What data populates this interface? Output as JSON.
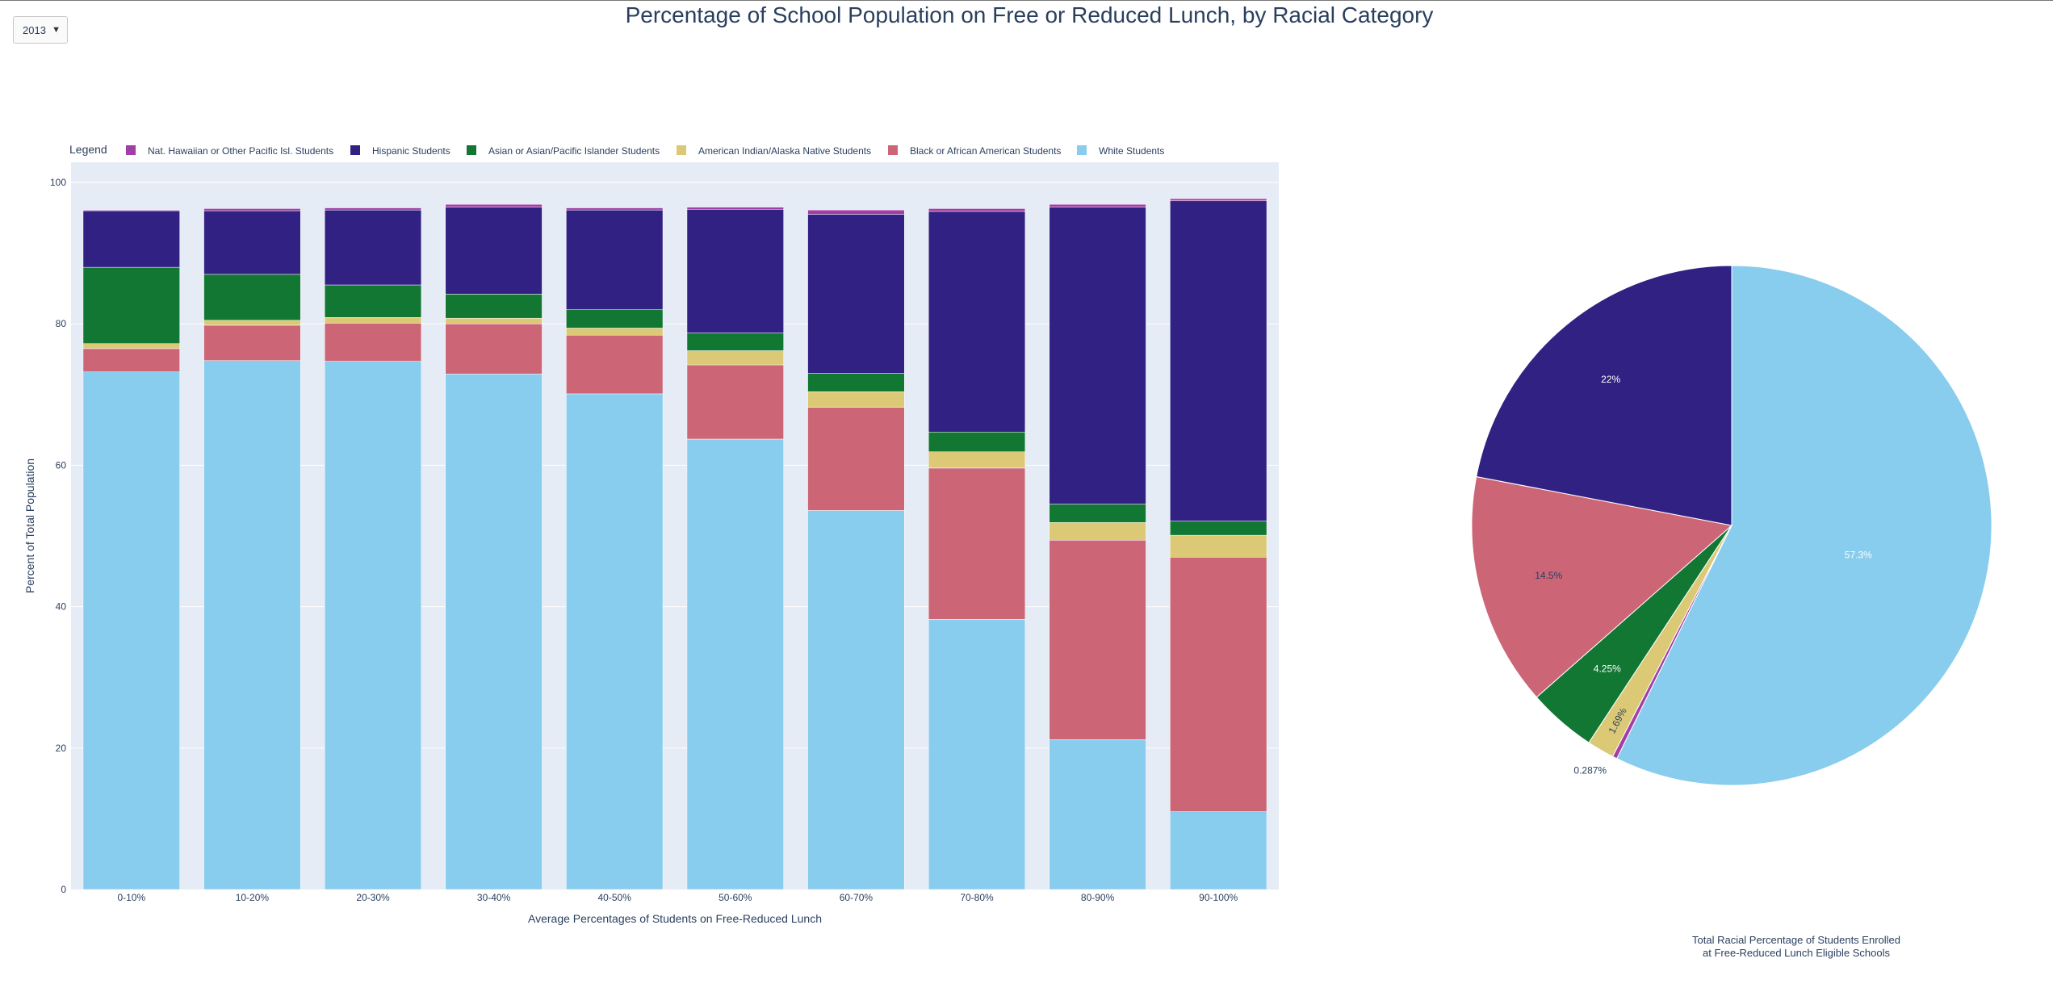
{
  "controls": {
    "year_value": "2013"
  },
  "colors": {
    "hawaiian": "#a23fa6",
    "hispanic": "#312183",
    "asian": "#127733",
    "native": "#dbc976",
    "black": "#cc6677",
    "white": "#88ccee",
    "plot_bg": "#e5ecf6",
    "text": "#2a3f5f"
  },
  "chart_data": [
    {
      "type": "bar",
      "stacked": true,
      "title": "Percentage of School Population on Free or Reduced Lunch, by Racial Category",
      "xlabel": "Average Percentages of Students on Free-Reduced Lunch",
      "ylabel": "Percent of Total Population",
      "ylim": [
        0,
        100
      ],
      "yticks": [
        0,
        20,
        40,
        60,
        80,
        100
      ],
      "grid": true,
      "legend_title": "Legend",
      "legend_position": "top",
      "categories": [
        "0-10%",
        "10-20%",
        "20-30%",
        "30-40%",
        "40-50%",
        "50-60%",
        "60-70%",
        "70-80%",
        "80-90%",
        "90-100%"
      ],
      "series": [
        {
          "name": "White Students",
          "key": "white",
          "values": [
            73.2,
            74.8,
            74.7,
            72.9,
            70.1,
            63.7,
            53.6,
            38.2,
            21.2,
            11.0
          ]
        },
        {
          "name": "Black or African American Students",
          "key": "black",
          "values": [
            3.3,
            5.0,
            5.4,
            7.1,
            8.3,
            10.5,
            14.6,
            21.4,
            28.2,
            36.0
          ]
        },
        {
          "name": "American Indian/Alaska Native Students",
          "key": "native",
          "values": [
            0.7,
            0.7,
            0.8,
            0.8,
            1.0,
            2.0,
            2.2,
            2.3,
            2.5,
            3.1
          ]
        },
        {
          "name": "Asian or Asian/Pacific Islander Students",
          "key": "asian",
          "values": [
            10.8,
            6.5,
            4.6,
            3.4,
            2.6,
            2.5,
            2.6,
            2.8,
            2.6,
            2.0
          ]
        },
        {
          "name": "Hispanic Students",
          "key": "hispanic",
          "values": [
            8.0,
            9.0,
            10.6,
            12.3,
            14.1,
            17.5,
            22.5,
            31.2,
            42.0,
            45.3
          ]
        },
        {
          "name": "Nat. Hawaiian or Other Pacific Isl. Students",
          "key": "hawaiian",
          "values": [
            0.1,
            0.3,
            0.3,
            0.4,
            0.3,
            0.3,
            0.6,
            0.4,
            0.4,
            0.3
          ]
        }
      ],
      "legend_order": [
        "hawaiian",
        "hispanic",
        "asian",
        "native",
        "black",
        "white"
      ]
    },
    {
      "type": "pie",
      "caption_lines": [
        "Total Racial Percentage of Students Enrolled",
        "at Free-Reduced Lunch Eligible Schools"
      ],
      "slices": [
        {
          "key": "white",
          "value": 57.3,
          "label": "57.3%"
        },
        {
          "key": "hawaiian",
          "value": 0.287,
          "label": "0.287%"
        },
        {
          "key": "native",
          "value": 1.69,
          "label": "1.69%"
        },
        {
          "key": "asian",
          "value": 4.25,
          "label": "4.25%"
        },
        {
          "key": "black",
          "value": 14.5,
          "label": "14.5%"
        },
        {
          "key": "hispanic",
          "value": 22.0,
          "label": "22%"
        }
      ]
    }
  ]
}
